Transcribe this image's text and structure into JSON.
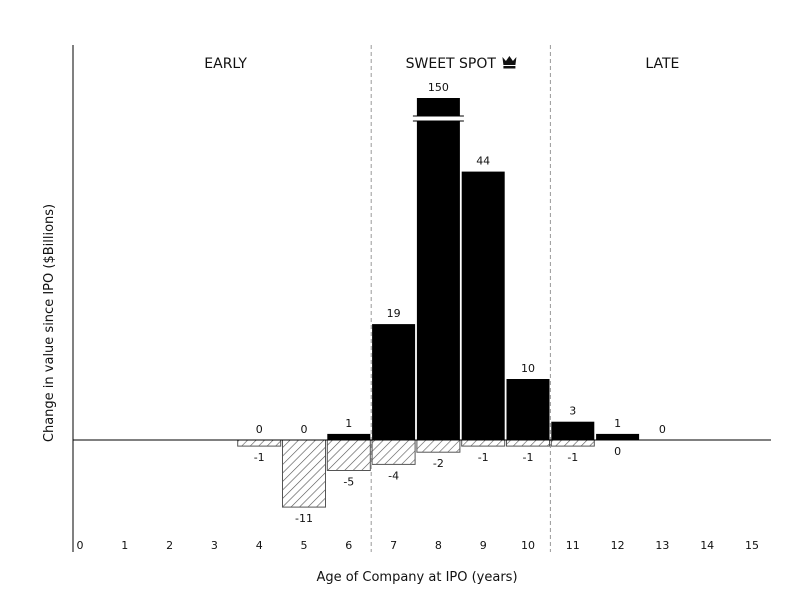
{
  "chart_data": {
    "type": "bar",
    "title": "",
    "xlabel": "Age of Company at IPO (years)",
    "ylabel": "Change in value since IPO ($Billions)",
    "x_ticks": [
      "0",
      "1",
      "2",
      "3",
      "4",
      "5",
      "6",
      "7",
      "8",
      "9",
      "10",
      "11",
      "12",
      "13",
      "14",
      "15"
    ],
    "regions": [
      {
        "label": "EARLY",
        "icon": "crown-icon",
        "x_range": [
          0,
          6.5
        ],
        "show_icon": false
      },
      {
        "label": "SWEET SPOT",
        "icon": "crown-icon",
        "x_range": [
          6.5,
          10.5
        ],
        "show_icon": true
      },
      {
        "label": "LATE",
        "icon": "crown-icon",
        "x_range": [
          10.5,
          15.5
        ],
        "show_icon": false
      }
    ],
    "axis_break": {
      "category": "8",
      "note": "bar truncated with break marks"
    },
    "series": [
      {
        "name": "",
        "style": "solid-black",
        "color": "#000000",
        "points": [
          {
            "x": 4,
            "value": 0,
            "label": "0"
          },
          {
            "x": 5,
            "value": 0,
            "label": "0"
          },
          {
            "x": 6,
            "value": 1,
            "label": "1"
          },
          {
            "x": 7,
            "value": 19,
            "label": "19"
          },
          {
            "x": 8,
            "value": 150,
            "label": "150"
          },
          {
            "x": 9,
            "value": 44,
            "label": "44"
          },
          {
            "x": 10,
            "value": 10,
            "label": "10"
          },
          {
            "x": 11,
            "value": 3,
            "label": "3"
          },
          {
            "x": 12,
            "value": 1,
            "label": "1"
          },
          {
            "x": 13,
            "value": 0,
            "label": "0"
          }
        ]
      },
      {
        "name": "",
        "style": "hatched",
        "color": "#555555",
        "points": [
          {
            "x": 4,
            "value": -1,
            "label": "-1"
          },
          {
            "x": 5,
            "value": -11,
            "label": "-11"
          },
          {
            "x": 6,
            "value": -5,
            "label": "-5"
          },
          {
            "x": 7,
            "value": -4,
            "label": "-4"
          },
          {
            "x": 8,
            "value": -2,
            "label": "-2"
          },
          {
            "x": 9,
            "value": -1,
            "label": "-1"
          },
          {
            "x": 10,
            "value": -1,
            "label": "-1"
          },
          {
            "x": 11,
            "value": -1,
            "label": "-1"
          },
          {
            "x": 12,
            "value": 0,
            "label": "0"
          }
        ]
      }
    ],
    "grid": false,
    "legend": "none"
  }
}
